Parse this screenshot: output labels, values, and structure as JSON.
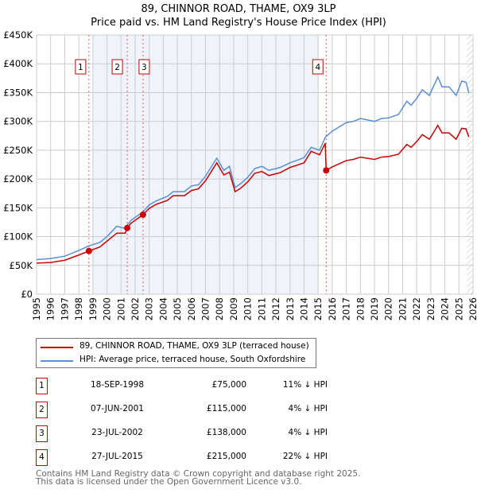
{
  "title": "89, CHINNOR ROAD, THAME, OX9 3LP",
  "subtitle": "Price paid vs. HM Land Registry's House Price Index (HPI)",
  "chart_data": {
    "type": "line",
    "title": "89, CHINNOR ROAD, THAME, OX9 3LP — Price paid vs. HM Land Registry's House Price Index (HPI)",
    "xlim": [
      1995,
      2026
    ],
    "ylim": [
      0,
      450000
    ],
    "yticks": [
      {
        "v": 0,
        "label": "£0"
      },
      {
        "v": 50000,
        "label": "£50K"
      },
      {
        "v": 100000,
        "label": "£100K"
      },
      {
        "v": 150000,
        "label": "£150K"
      },
      {
        "v": 200000,
        "label": "£200K"
      },
      {
        "v": 250000,
        "label": "£250K"
      },
      {
        "v": 300000,
        "label": "£300K"
      },
      {
        "v": 350000,
        "label": "£350K"
      },
      {
        "v": 400000,
        "label": "£400K"
      },
      {
        "v": 450000,
        "label": "£450K"
      }
    ],
    "xticks": [
      "1995",
      "1996",
      "1997",
      "1998",
      "1999",
      "2000",
      "2001",
      "2002",
      "2003",
      "2004",
      "2005",
      "2006",
      "2007",
      "2008",
      "2009",
      "2010",
      "2011",
      "2012",
      "2013",
      "2014",
      "2015",
      "2016",
      "2017",
      "2018",
      "2019",
      "2020",
      "2021",
      "2022",
      "2023",
      "2024",
      "2025",
      "2026"
    ],
    "shaded_range": [
      1999,
      2015
    ],
    "hatched_from": 2025.55,
    "x": [
      1995,
      1996,
      1997,
      1998,
      1998.72,
      1999.5,
      2000,
      2000.7,
      2001.3,
      2001.44,
      2001.7,
      2002.56,
      2003,
      2003.5,
      2004.3,
      2004.7,
      2005.5,
      2006,
      2006.5,
      2007,
      2007.8,
      2008.3,
      2008.7,
      2009.1,
      2009.5,
      2010,
      2010.5,
      2011,
      2011.5,
      2012.3,
      2013,
      2014,
      2014.5,
      2015.1,
      2015.5,
      2015.57,
      2016,
      2017,
      2017.5,
      2018,
      2019,
      2019.5,
      2020,
      2020.7,
      2021.3,
      2021.6,
      2022,
      2022.4,
      2022.9,
      2023.5,
      2023.8,
      2024.3,
      2024.8,
      2025.2,
      2025.5,
      2025.7
    ],
    "series": [
      {
        "name": "89, CHINNOR ROAD, THAME, OX9 3LP (terraced house)",
        "color": "#cc0000",
        "values": [
          54000,
          55000,
          59000,
          68000,
          75000,
          82000,
          92000,
          106000,
          106000,
          115000,
          123000,
          138000,
          149000,
          156000,
          163000,
          171000,
          171000,
          180000,
          183000,
          197000,
          228000,
          207000,
          212000,
          178000,
          184000,
          195000,
          210000,
          213000,
          206000,
          211000,
          220000,
          228000,
          248000,
          242000,
          262000,
          215000,
          221000,
          232000,
          234000,
          238000,
          234000,
          238000,
          239000,
          243000,
          260000,
          255000,
          265000,
          277000,
          269000,
          293000,
          280000,
          280000,
          269000,
          288000,
          287000,
          273000
        ]
      },
      {
        "name": "HPI: Average price, terraced house, South Oxfordshire",
        "color": "#5b8fd4",
        "values": [
          60000,
          62000,
          66000,
          76000,
          84000,
          90000,
          100000,
          118000,
          114000,
          120000,
          128000,
          143000,
          155000,
          162000,
          170000,
          178000,
          178000,
          188000,
          190000,
          205000,
          236000,
          215000,
          222000,
          185000,
          192000,
          203000,
          218000,
          222000,
          215000,
          220000,
          228000,
          237000,
          255000,
          250000,
          272000,
          274000,
          283000,
          298000,
          300000,
          305000,
          300000,
          305000,
          306000,
          312000,
          335000,
          328000,
          340000,
          355000,
          345000,
          377000,
          360000,
          360000,
          345000,
          370000,
          368000,
          350000
        ]
      }
    ],
    "sales": [
      {
        "label": "1",
        "x": 1998.72,
        "value": 75000,
        "date": "18-SEP-1998",
        "price": "£75,000",
        "hpi": "11% ↓ HPI"
      },
      {
        "label": "2",
        "x": 2001.44,
        "value": 115000,
        "date": "07-JUN-2001",
        "price": "£115,000",
        "hpi": "4% ↓ HPI"
      },
      {
        "label": "3",
        "x": 2002.56,
        "value": 138000,
        "date": "23-JUL-2002",
        "price": "£138,000",
        "hpi": "4% ↓ HPI"
      },
      {
        "label": "4",
        "x": 2015.57,
        "value": 215000,
        "date": "27-JUL-2015",
        "price": "£215,000",
        "hpi": "22% ↓ HPI"
      }
    ]
  },
  "legend": {
    "property": "89, CHINNOR ROAD, THAME, OX9 3LP (terraced house)",
    "hpi": "HPI: Average price, terraced house, South Oxfordshire"
  },
  "footer": {
    "line1": "Contains HM Land Registry data © Crown copyright and database right 2025.",
    "line2": "This data is licensed under the Open Government Licence v3.0."
  }
}
